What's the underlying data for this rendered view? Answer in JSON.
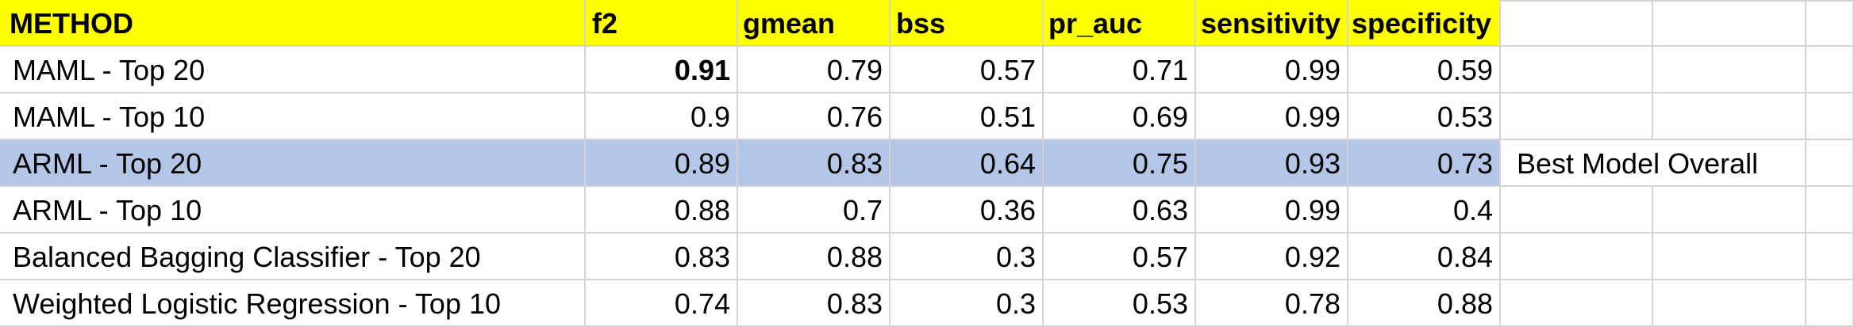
{
  "header": {
    "method": "METHOD",
    "f2": "f2",
    "gmean": "gmean",
    "bss": "bss",
    "pr_auc": "pr_auc",
    "sensitivity": "sensitivity",
    "specificity": "specificity"
  },
  "rows": [
    {
      "method": "MAML - Top 20",
      "f2": "0.91",
      "gmean": "0.79",
      "bss": "0.57",
      "pr_auc": "0.71",
      "sensitivity": "0.99",
      "specificity": "0.59",
      "note": ""
    },
    {
      "method": "MAML - Top 10",
      "f2": "0.9",
      "gmean": "0.76",
      "bss": "0.51",
      "pr_auc": "0.69",
      "sensitivity": "0.99",
      "specificity": "0.53",
      "note": ""
    },
    {
      "method": "ARML - Top 20",
      "f2": "0.89",
      "gmean": "0.83",
      "bss": "0.64",
      "pr_auc": "0.75",
      "sensitivity": "0.93",
      "specificity": "0.73",
      "note": "Best Model Overall"
    },
    {
      "method": "ARML - Top 10",
      "f2": "0.88",
      "gmean": "0.7",
      "bss": "0.36",
      "pr_auc": "0.63",
      "sensitivity": "0.99",
      "specificity": "0.4",
      "note": ""
    },
    {
      "method": "Balanced Bagging Classifier - Top 20",
      "f2": "0.83",
      "gmean": "0.88",
      "bss": "0.3",
      "pr_auc": "0.57",
      "sensitivity": "0.92",
      "specificity": "0.84",
      "note": ""
    },
    {
      "method": "Weighted Logistic Regression - Top 10",
      "f2": "0.74",
      "gmean": "0.83",
      "bss": "0.3",
      "pr_auc": "0.53",
      "sensitivity": "0.78",
      "specificity": "0.88",
      "note": ""
    }
  ],
  "colors": {
    "header_fill": "#ffff00",
    "highlight_fill": "#b4c6e7",
    "gridline": "#d4d4d4"
  }
}
